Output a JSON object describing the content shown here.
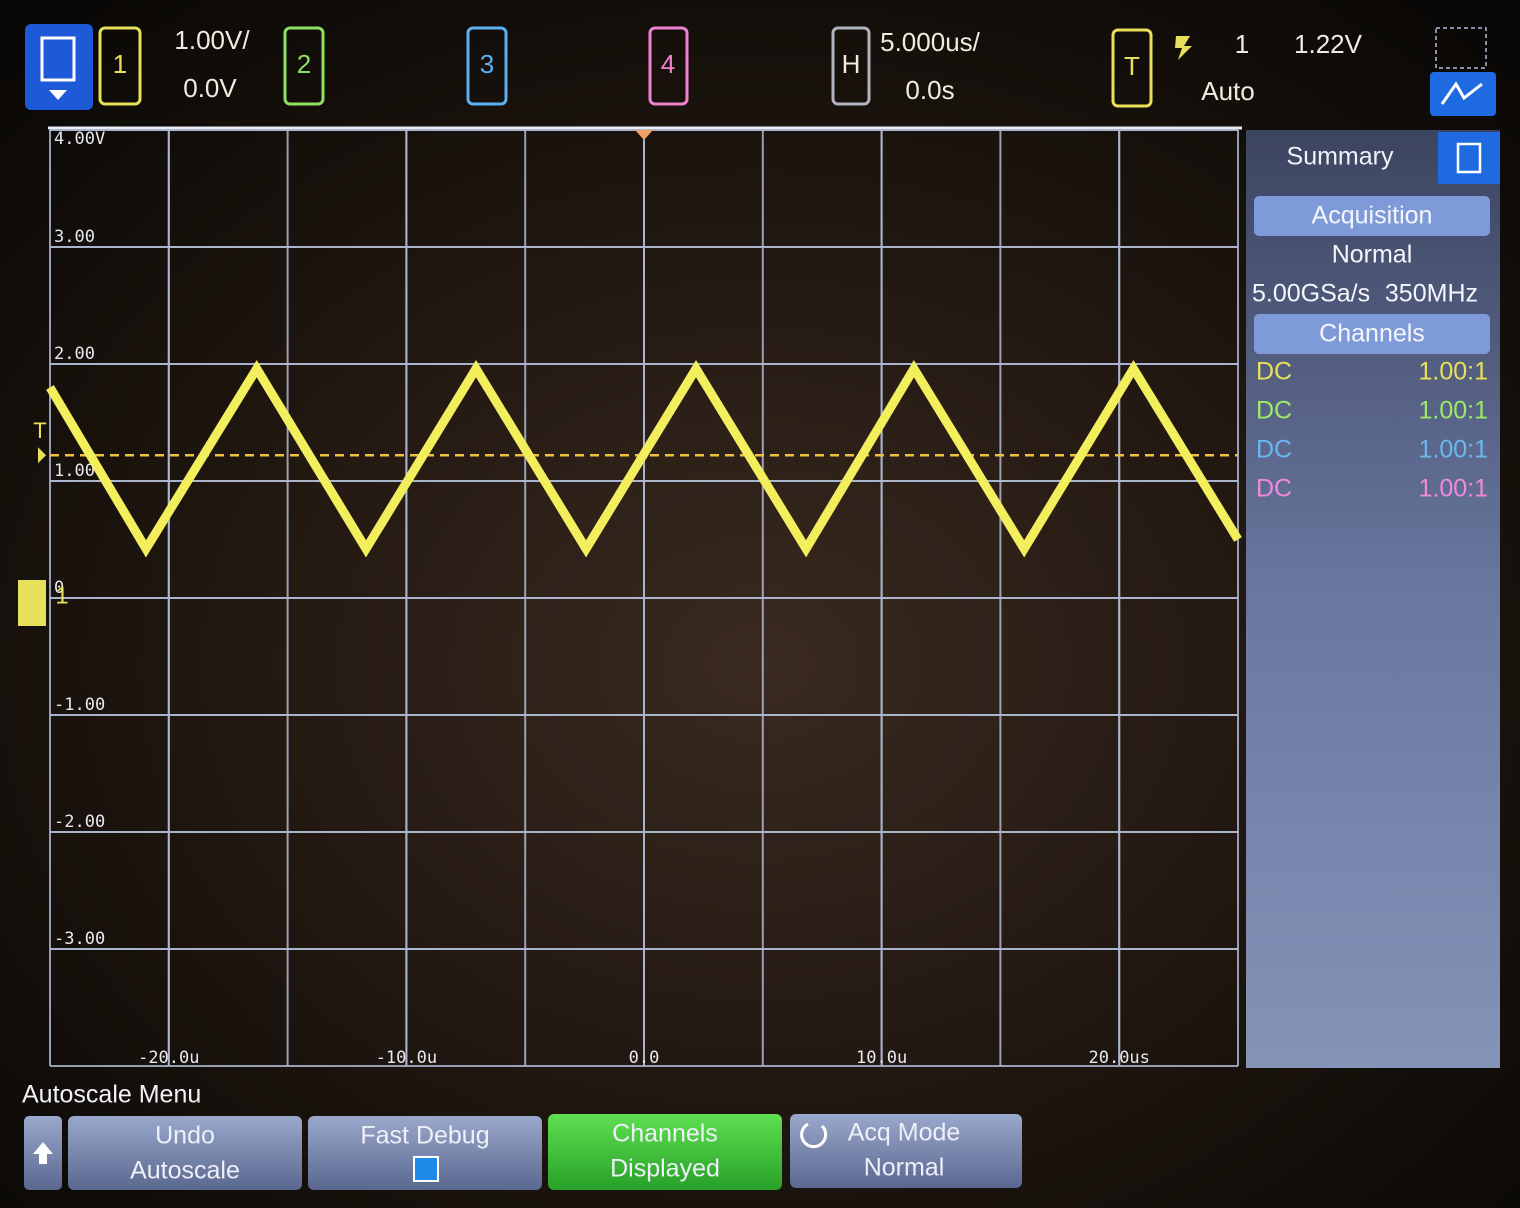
{
  "top_bar": {
    "channel_buttons": [
      "1",
      "2",
      "3",
      "4"
    ],
    "ch1_scale": "1.00V/",
    "ch1_offset": "0.0V",
    "horizontal_label": "H",
    "time_scale": "5.000us/",
    "time_delay": "0.0s",
    "trigger_label": "T",
    "trigger_source": "1",
    "trigger_level": "1.22V",
    "trigger_mode": "Auto"
  },
  "chart_data": {
    "type": "line",
    "x": [
      -25,
      -20.96,
      -16.3,
      -11.7,
      -7.07,
      -2.44,
      2.19,
      6.82,
      11.36,
      16.0,
      20.6,
      25
    ],
    "values": [
      1.8,
      0.42,
      1.96,
      0.42,
      1.96,
      0.42,
      1.96,
      0.42,
      1.96,
      0.42,
      1.96,
      0.5
    ],
    "color": "#f2ee5c",
    "xlim": [
      -25,
      25
    ],
    "ylim": [
      -4,
      4
    ],
    "xticks": [
      {
        "value": -20,
        "label": "-20.0u"
      },
      {
        "value": -10,
        "label": "-10.0u"
      },
      {
        "value": 0,
        "label": "0.0"
      },
      {
        "value": 10,
        "label": "10.0u"
      },
      {
        "value": 20,
        "label": "20.0us"
      }
    ],
    "yticks": [
      {
        "value": 4,
        "label": "4.00V"
      },
      {
        "value": 3,
        "label": "3.00"
      },
      {
        "value": 2,
        "label": "2.00"
      },
      {
        "value": 1,
        "label": "1.00"
      },
      0,
      {
        "value": -1,
        "label": "-1.00"
      },
      {
        "value": -2,
        "label": "-2.00"
      },
      {
        "value": -3,
        "label": "-3.00"
      }
    ],
    "grid": true,
    "grid_divisions": {
      "x": 10,
      "y": 8
    },
    "trigger_level": 1.22,
    "trigger_marker": "T",
    "ground_marker": "1"
  },
  "side_panel": {
    "title": "Summary",
    "acquisition_header": "Acquisition",
    "acquisition_mode": "Normal",
    "sample_rate": "5.00GSa/s",
    "bandwidth": "350MHz",
    "channels_header": "Channels",
    "channels": [
      {
        "coupling": "DC",
        "probe": "1.00:1",
        "color": "#e8e05a"
      },
      {
        "coupling": "DC",
        "probe": "1.00:1",
        "color": "#9ee86a"
      },
      {
        "coupling": "DC",
        "probe": "1.00:1",
        "color": "#6ab8f0"
      },
      {
        "coupling": "DC",
        "probe": "1.00:1",
        "color": "#f08ad8"
      }
    ]
  },
  "softkeys": {
    "menu_title": "Autoscale Menu",
    "keys": [
      {
        "line1": "Undo",
        "line2": "Autoscale"
      },
      {
        "line1": "Fast Debug"
      },
      {
        "line1": "Channels",
        "line2": "Displayed"
      },
      {
        "line1": "Acq Mode",
        "line2": "Normal"
      }
    ]
  }
}
